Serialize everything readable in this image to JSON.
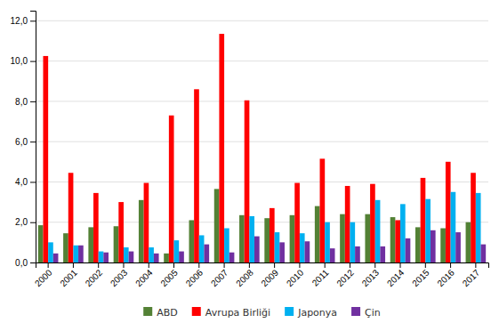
{
  "chart_data": {
    "type": "bar",
    "categories": [
      "2000",
      "2001",
      "2002",
      "2003",
      "2004",
      "2005",
      "2006",
      "2007",
      "2008",
      "2009",
      "2010",
      "2011",
      "2012",
      "2013",
      "2014",
      "2015",
      "2016",
      "2017"
    ],
    "series": [
      {
        "name": "ABD",
        "color": "#538135",
        "values": [
          1.85,
          1.45,
          1.75,
          1.8,
          3.1,
          0.45,
          2.1,
          3.65,
          2.35,
          2.2,
          2.35,
          2.8,
          2.4,
          2.4,
          2.25,
          1.75,
          1.7,
          2.0
        ]
      },
      {
        "name": "Avrupa Birliği",
        "color": "#FF0000",
        "values": [
          10.25,
          4.45,
          3.45,
          3.0,
          3.95,
          7.3,
          8.6,
          11.35,
          8.05,
          2.7,
          3.95,
          5.15,
          3.8,
          3.9,
          2.1,
          4.2,
          5.0,
          4.45
        ]
      },
      {
        "name": "Japonya",
        "color": "#00B0F0",
        "values": [
          1.0,
          0.85,
          0.55,
          0.75,
          0.75,
          1.1,
          1.35,
          1.7,
          2.3,
          1.5,
          1.45,
          2.0,
          2.0,
          3.1,
          2.9,
          3.15,
          3.5,
          3.45
        ]
      },
      {
        "name": "Çin",
        "color": "#7030A0",
        "values": [
          0.45,
          0.85,
          0.5,
          0.55,
          0.45,
          0.55,
          0.9,
          0.5,
          1.3,
          1.0,
          1.05,
          0.7,
          0.8,
          0.8,
          1.2,
          1.6,
          1.5,
          0.9
        ]
      }
    ],
    "ylim": [
      0,
      12.5
    ],
    "yticks": [
      {
        "value": 0.0,
        "label": "0,0"
      },
      {
        "value": 2.0,
        "label": "2,0"
      },
      {
        "value": 4.0,
        "label": "4,0"
      },
      {
        "value": 6.0,
        "label": "6,0"
      },
      {
        "value": 8.0,
        "label": "8,0"
      },
      {
        "value": 10.0,
        "label": "10,0"
      },
      {
        "value": 12.0,
        "label": "12,0"
      }
    ],
    "grid": true,
    "legend": "bottom"
  }
}
